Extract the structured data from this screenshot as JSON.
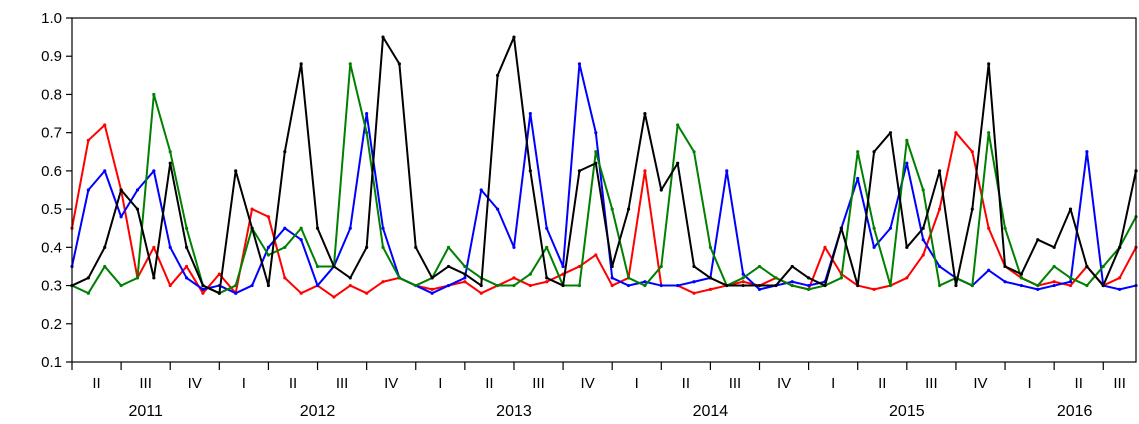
{
  "chart_data": {
    "type": "line",
    "title": "",
    "xlabel": "",
    "ylabel": "",
    "ylim": [
      0.1,
      1.0
    ],
    "yticks": [
      "0.1",
      "0.2",
      "0.3",
      "0.4",
      "0.5",
      "0.6",
      "0.7",
      "0.8",
      "0.9",
      "1.0"
    ],
    "x_start": "2011-04",
    "x_end": "2016-09",
    "quarters": [
      {
        "year": 2011,
        "label": "II"
      },
      {
        "year": 2011,
        "label": "III"
      },
      {
        "year": 2011,
        "label": "IV"
      },
      {
        "year": 2012,
        "label": "I"
      },
      {
        "year": 2012,
        "label": "II"
      },
      {
        "year": 2012,
        "label": "III"
      },
      {
        "year": 2012,
        "label": "IV"
      },
      {
        "year": 2013,
        "label": "I"
      },
      {
        "year": 2013,
        "label": "II"
      },
      {
        "year": 2013,
        "label": "III"
      },
      {
        "year": 2013,
        "label": "IV"
      },
      {
        "year": 2014,
        "label": "I"
      },
      {
        "year": 2014,
        "label": "II"
      },
      {
        "year": 2014,
        "label": "III"
      },
      {
        "year": 2014,
        "label": "IV"
      },
      {
        "year": 2015,
        "label": "I"
      },
      {
        "year": 2015,
        "label": "II"
      },
      {
        "year": 2015,
        "label": "III"
      },
      {
        "year": 2015,
        "label": "IV"
      },
      {
        "year": 2016,
        "label": "I"
      },
      {
        "year": 2016,
        "label": "II"
      },
      {
        "year": 2016,
        "label": "III"
      }
    ],
    "years": [
      "2011",
      "2012",
      "2013",
      "2014",
      "2015",
      "2016"
    ],
    "x": [
      "2011-04",
      "2011-05",
      "2011-06",
      "2011-07",
      "2011-08",
      "2011-09",
      "2011-10",
      "2011-11",
      "2011-12",
      "2012-01",
      "2012-02",
      "2012-03",
      "2012-04",
      "2012-05",
      "2012-06",
      "2012-07",
      "2012-08",
      "2012-09",
      "2012-10",
      "2012-11",
      "2012-12",
      "2013-01",
      "2013-02",
      "2013-03",
      "2013-04",
      "2013-05",
      "2013-06",
      "2013-07",
      "2013-08",
      "2013-09",
      "2013-10",
      "2013-11",
      "2013-12",
      "2014-01",
      "2014-02",
      "2014-03",
      "2014-04",
      "2014-05",
      "2014-06",
      "2014-07",
      "2014-08",
      "2014-09",
      "2014-10",
      "2014-11",
      "2014-12",
      "2015-01",
      "2015-02",
      "2015-03",
      "2015-04",
      "2015-05",
      "2015-06",
      "2015-07",
      "2015-08",
      "2015-09",
      "2015-10",
      "2015-11",
      "2015-12",
      "2016-01",
      "2016-02",
      "2016-03",
      "2016-04",
      "2016-05",
      "2016-06",
      "2016-07",
      "2016-08",
      "2016-09"
    ],
    "series": [
      {
        "color": "#ff0000",
        "values": [
          0.45,
          0.68,
          0.72,
          0.55,
          0.32,
          0.4,
          0.3,
          0.35,
          0.28,
          0.33,
          0.28,
          0.5,
          0.48,
          0.32,
          0.28,
          0.3,
          0.27,
          0.3,
          0.28,
          0.31,
          0.32,
          0.3,
          0.29,
          0.3,
          0.31,
          0.28,
          0.3,
          0.32,
          0.3,
          0.31,
          0.33,
          0.35,
          0.38,
          0.3,
          0.32,
          0.6,
          0.3,
          0.3,
          0.28,
          0.29,
          0.3,
          0.31,
          0.3,
          0.32,
          0.3,
          0.29,
          0.4,
          0.33,
          0.3,
          0.29,
          0.3,
          0.32,
          0.38,
          0.5,
          0.7,
          0.65,
          0.45,
          0.35,
          0.32,
          0.3,
          0.31,
          0.3,
          0.35,
          0.3,
          0.32,
          0.4
        ]
      },
      {
        "color": "#0000ff",
        "values": [
          0.35,
          0.55,
          0.6,
          0.48,
          0.55,
          0.6,
          0.4,
          0.32,
          0.29,
          0.3,
          0.28,
          0.3,
          0.4,
          0.45,
          0.42,
          0.3,
          0.35,
          0.45,
          0.75,
          0.45,
          0.32,
          0.3,
          0.28,
          0.3,
          0.32,
          0.55,
          0.5,
          0.4,
          0.75,
          0.45,
          0.35,
          0.88,
          0.7,
          0.32,
          0.3,
          0.31,
          0.3,
          0.3,
          0.31,
          0.32,
          0.6,
          0.33,
          0.29,
          0.3,
          0.31,
          0.3,
          0.31,
          0.45,
          0.58,
          0.4,
          0.45,
          0.62,
          0.42,
          0.35,
          0.32,
          0.3,
          0.34,
          0.31,
          0.3,
          0.29,
          0.3,
          0.31,
          0.65,
          0.3,
          0.29,
          0.3
        ]
      },
      {
        "color": "#008000",
        "values": [
          0.3,
          0.28,
          0.35,
          0.3,
          0.32,
          0.8,
          0.65,
          0.45,
          0.3,
          0.28,
          0.3,
          0.45,
          0.38,
          0.4,
          0.45,
          0.35,
          0.35,
          0.88,
          0.7,
          0.4,
          0.32,
          0.3,
          0.32,
          0.4,
          0.35,
          0.32,
          0.3,
          0.3,
          0.33,
          0.4,
          0.3,
          0.3,
          0.65,
          0.5,
          0.32,
          0.3,
          0.35,
          0.72,
          0.65,
          0.4,
          0.3,
          0.32,
          0.35,
          0.32,
          0.3,
          0.29,
          0.3,
          0.32,
          0.65,
          0.45,
          0.3,
          0.68,
          0.55,
          0.3,
          0.32,
          0.3,
          0.7,
          0.45,
          0.32,
          0.3,
          0.35,
          0.32,
          0.3,
          0.35,
          0.4,
          0.48
        ]
      },
      {
        "color": "#000000",
        "values": [
          0.3,
          0.32,
          0.4,
          0.55,
          0.5,
          0.32,
          0.62,
          0.4,
          0.3,
          0.28,
          0.6,
          0.45,
          0.3,
          0.65,
          0.88,
          0.45,
          0.35,
          0.32,
          0.4,
          0.95,
          0.88,
          0.4,
          0.32,
          0.35,
          0.33,
          0.3,
          0.85,
          0.95,
          0.6,
          0.32,
          0.3,
          0.6,
          0.62,
          0.35,
          0.5,
          0.75,
          0.55,
          0.62,
          0.35,
          0.32,
          0.3,
          0.3,
          0.3,
          0.3,
          0.35,
          0.32,
          0.3,
          0.45,
          0.3,
          0.65,
          0.7,
          0.4,
          0.45,
          0.6,
          0.3,
          0.5,
          0.88,
          0.35,
          0.33,
          0.42,
          0.4,
          0.5,
          0.35,
          0.3,
          0.4,
          0.6
        ]
      }
    ]
  }
}
